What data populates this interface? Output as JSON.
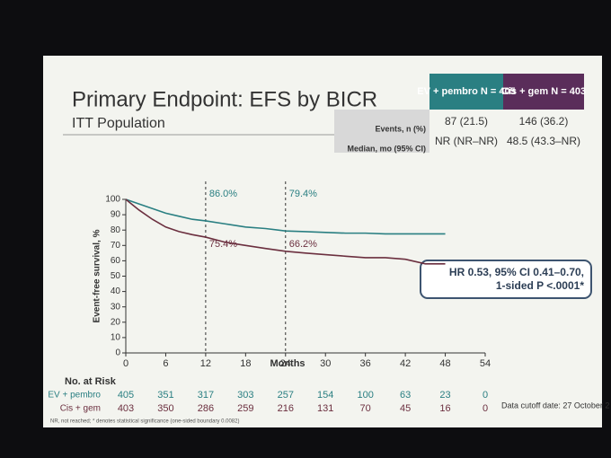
{
  "chart_data": {
    "type": "line",
    "title": "Primary Endpoint: EFS by BICR",
    "subtitle": "ITT Population",
    "summary_table": {
      "headers": [
        "EV + pembro N = 405",
        "Cis + gem N = 403"
      ],
      "rows": [
        {
          "label": "Events, n (%)",
          "cells": [
            "87 (21.5)",
            "146 (36.2)"
          ]
        },
        {
          "label": "Median, mo (95% CI)",
          "cells": [
            "NR (NR–NR)",
            "48.5 (43.3–NR)"
          ]
        }
      ]
    },
    "x_label": "Months",
    "y_label": "Event-free survival, %",
    "x": [
      0,
      2,
      4,
      6,
      8,
      10,
      12,
      15,
      18,
      21,
      24,
      27,
      30,
      33,
      36,
      39,
      42,
      45,
      48
    ],
    "series": [
      {
        "name": "EV + pembro",
        "color": "#2a7f82",
        "values": [
          100,
          97,
          94,
          91,
          89,
          87,
          86.0,
          84,
          82,
          81,
          79.4,
          79,
          78.5,
          78,
          78,
          77.5,
          77.5,
          77.5,
          77.5
        ]
      },
      {
        "name": "Cis + gem",
        "color": "#6b2f3f",
        "values": [
          100,
          93,
          87,
          82,
          79,
          77,
          75.4,
          72,
          70,
          68,
          66.2,
          65,
          64,
          63,
          62,
          62,
          61,
          58,
          58
        ]
      }
    ],
    "landmarks": [
      {
        "x": 12,
        "labels": [
          "86.0%",
          "75.4%"
        ]
      },
      {
        "x": 24,
        "labels": [
          "79.4%",
          "66.2%"
        ]
      }
    ],
    "xlim": [
      0,
      54
    ],
    "xticks": [
      0,
      6,
      12,
      18,
      24,
      30,
      36,
      42,
      48,
      54
    ],
    "ylim": [
      0,
      100
    ],
    "yticks": [
      0,
      10,
      20,
      30,
      40,
      50,
      60,
      70,
      80,
      90,
      100
    ],
    "hr_box": [
      "HR 0.53, 95% CI 0.41–0.70,",
      "1-sided P <.0001*"
    ],
    "risk_table": {
      "title": "No. at Risk",
      "rows": [
        {
          "name": "EV + pembro",
          "values": [
            405,
            351,
            317,
            303,
            257,
            154,
            100,
            63,
            23,
            0
          ]
        },
        {
          "name": "Cis + gem",
          "values": [
            403,
            350,
            286,
            259,
            216,
            131,
            70,
            45,
            16,
            0
          ]
        }
      ]
    },
    "cutoff_note": "Data cutoff date: 27 October 2",
    "footnote": "NR, not reached; * denotes statistical significance (one-sided boundary 0.0082)"
  }
}
